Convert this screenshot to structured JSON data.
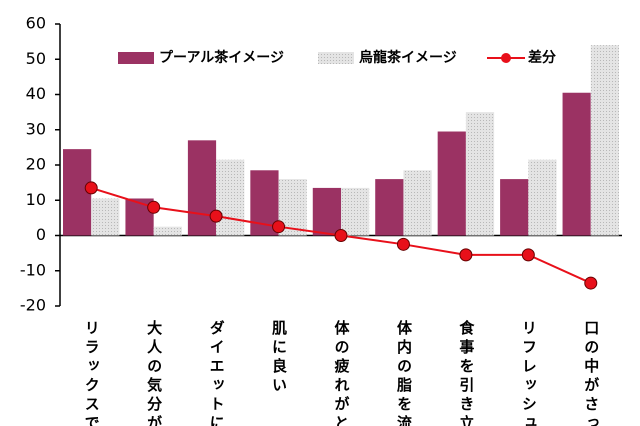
{
  "chart_data": {
    "type": "bar",
    "categories": [
      "リラックスで",
      "大人の気分が",
      "ダイエットに",
      "肌に良い",
      "体の疲れがと",
      "体内の脂を流",
      "食事を引き立",
      "リフレッシュ",
      "口の中がさっ"
    ],
    "series": [
      {
        "name": "プーアル茶イメージ",
        "color": "#9b3263",
        "type": "bar",
        "values": [
          24.5,
          10.5,
          27,
          18.5,
          13.5,
          16,
          29.5,
          16,
          40.5
        ]
      },
      {
        "name": "烏龍茶イメージ",
        "color": "#d9d9d9",
        "type": "bar",
        "values": [
          10.5,
          2.5,
          21.5,
          16,
          13.5,
          18.5,
          35,
          21.5,
          54
        ]
      },
      {
        "name": "差分",
        "color": "#e8101a",
        "type": "line",
        "values": [
          13.5,
          8,
          5.5,
          2.5,
          0,
          -2.5,
          -5.5,
          -5.5,
          -13.5
        ]
      }
    ],
    "ylim": [
      -20,
      60
    ],
    "yticks": [
      -20,
      -10,
      0,
      10,
      20,
      30,
      40,
      50,
      60
    ],
    "grid": false
  }
}
